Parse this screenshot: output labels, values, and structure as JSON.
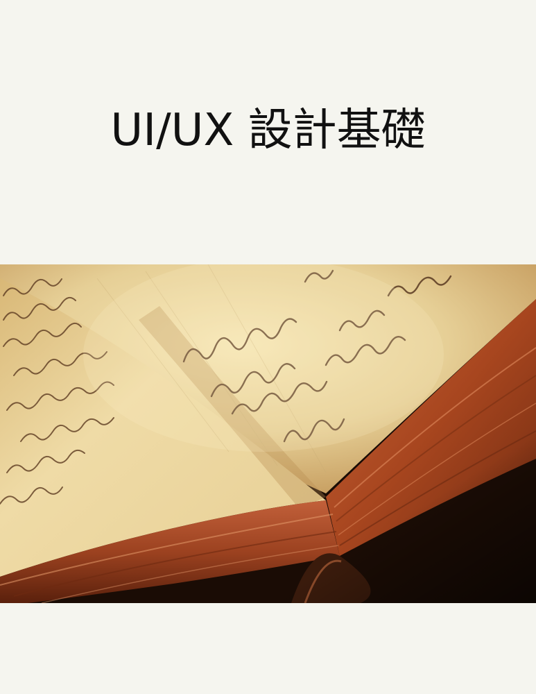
{
  "cover": {
    "title": "UI/UX 設計基礎",
    "image_subject": "open-antique-handwritten-book-photo"
  },
  "colors": {
    "page_background": "#f5f5ef",
    "title_text": "#111111",
    "paper_light": "#f1dfac",
    "paper_mid": "#dcc28a",
    "page_edge_red": "#b4512c",
    "dark_background": "#1a0c05",
    "ink": "#5a3a22"
  }
}
